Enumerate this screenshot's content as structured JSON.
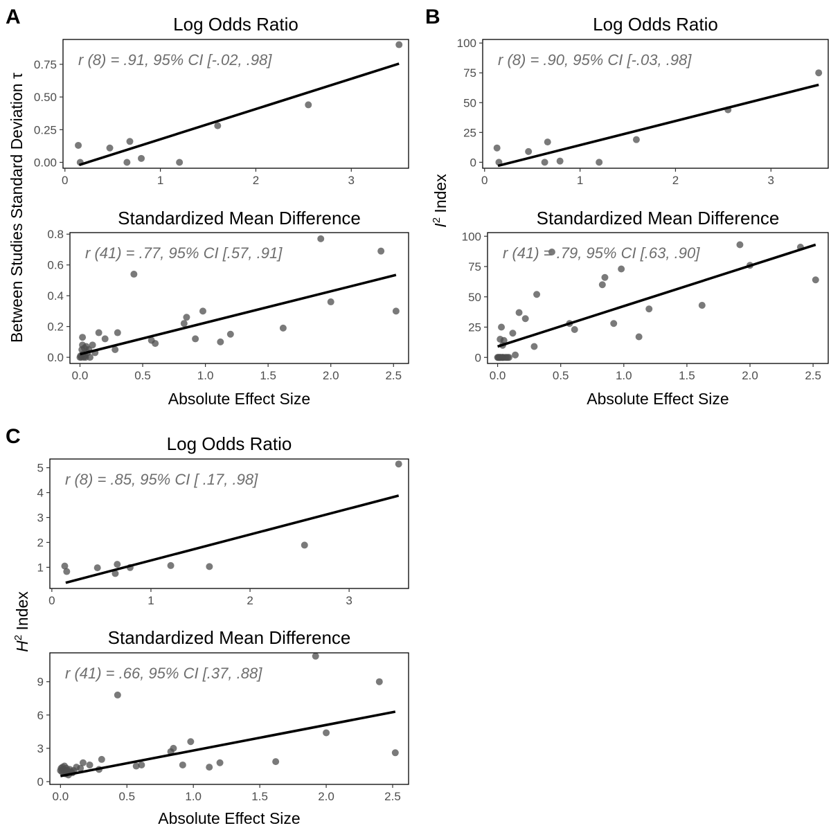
{
  "panel_letters": [
    "A",
    "B",
    "C"
  ],
  "chart_data": [
    {
      "id": "A-top",
      "panel": "A",
      "type": "scatter",
      "title": "Log Odds Ratio",
      "xlabel": "",
      "xlim": [
        -0.02,
        3.6
      ],
      "ylim": [
        -0.045,
        0.94
      ],
      "xticks": [
        0,
        1,
        2,
        3
      ],
      "yticks": [
        0,
        0.25,
        0.5,
        0.75
      ],
      "xticklabels": [
        "0",
        "1",
        "2",
        "3"
      ],
      "yticklabels": [
        "0.00",
        "0.25",
        "0.50",
        "0.75"
      ],
      "annotation": "r (8) = .91, 95% CI [-.02, .98]",
      "points": [
        [
          0.14,
          0.13
        ],
        [
          0.16,
          0.0
        ],
        [
          0.47,
          0.11
        ],
        [
          0.65,
          0.0
        ],
        [
          0.68,
          0.16
        ],
        [
          0.8,
          0.03
        ],
        [
          1.2,
          0.0
        ],
        [
          1.6,
          0.28
        ],
        [
          2.55,
          0.44
        ],
        [
          3.5,
          0.9
        ]
      ],
      "fit": [
        [
          0.15,
          -0.02
        ],
        [
          3.5,
          0.755
        ]
      ]
    },
    {
      "id": "A-bottom",
      "panel": "A",
      "type": "scatter",
      "title": "Standardized Mean Difference",
      "xlabel": "Absolute Effect Size",
      "xlim": [
        -0.08,
        2.62
      ],
      "ylim": [
        -0.04,
        0.81
      ],
      "xticks": [
        0,
        0.5,
        1,
        1.5,
        2,
        2.5
      ],
      "yticks": [
        0,
        0.2,
        0.4,
        0.6,
        0.8
      ],
      "xticklabels": [
        "0.0",
        "0.5",
        "1.0",
        "1.5",
        "2.0",
        "2.5"
      ],
      "yticklabels": [
        "0.0",
        "0.2",
        "0.4",
        "0.6",
        "0.8"
      ],
      "annotation": "r (41) = .77, 95% CI [.57, .91]",
      "points": [
        [
          0.0,
          0.0
        ],
        [
          0.005,
          0.01
        ],
        [
          0.01,
          0.0
        ],
        [
          0.015,
          0.05
        ],
        [
          0.02,
          0.08
        ],
        [
          0.02,
          0.13
        ],
        [
          0.025,
          0.02
        ],
        [
          0.03,
          0.0
        ],
        [
          0.035,
          0.06
        ],
        [
          0.04,
          0.01
        ],
        [
          0.045,
          0.0
        ],
        [
          0.05,
          0.07
        ],
        [
          0.06,
          0.03
        ],
        [
          0.07,
          0.05
        ],
        [
          0.08,
          0.0
        ],
        [
          0.1,
          0.08
        ],
        [
          0.12,
          0.03
        ],
        [
          0.15,
          0.16
        ],
        [
          0.2,
          0.12
        ],
        [
          0.28,
          0.05
        ],
        [
          0.3,
          0.16
        ],
        [
          0.43,
          0.54
        ],
        [
          0.57,
          0.11
        ],
        [
          0.6,
          0.09
        ],
        [
          0.83,
          0.22
        ],
        [
          0.85,
          0.26
        ],
        [
          0.92,
          0.12
        ],
        [
          0.98,
          0.3
        ],
        [
          1.12,
          0.1
        ],
        [
          1.2,
          0.15
        ],
        [
          1.62,
          0.19
        ],
        [
          1.92,
          0.77
        ],
        [
          2.0,
          0.36
        ],
        [
          2.4,
          0.69
        ],
        [
          2.52,
          0.3
        ]
      ],
      "fit": [
        [
          0.0,
          0.02
        ],
        [
          2.52,
          0.535
        ]
      ]
    },
    {
      "id": "B-top",
      "panel": "B",
      "type": "scatter",
      "title": "Log Odds Ratio",
      "xlabel": "",
      "xlim": [
        -0.02,
        3.6
      ],
      "ylim": [
        -5,
        103
      ],
      "xticks": [
        0,
        1,
        2,
        3
      ],
      "yticks": [
        0,
        25,
        50,
        75,
        100
      ],
      "xticklabels": [
        "0",
        "1",
        "2",
        "3"
      ],
      "yticklabels": [
        "0",
        "25",
        "50",
        "75",
        "100"
      ],
      "annotation": "r (8) = .90, 95% CI [-.03, .98]",
      "points": [
        [
          0.13,
          12
        ],
        [
          0.15,
          0
        ],
        [
          0.46,
          9
        ],
        [
          0.63,
          0
        ],
        [
          0.66,
          17
        ],
        [
          0.79,
          1
        ],
        [
          1.2,
          0
        ],
        [
          1.59,
          19
        ],
        [
          2.55,
          44
        ],
        [
          3.5,
          75
        ]
      ],
      "fit": [
        [
          0.14,
          -3
        ],
        [
          3.5,
          65
        ]
      ]
    },
    {
      "id": "B-bottom",
      "panel": "B",
      "type": "scatter",
      "title": "Standardized Mean Difference",
      "xlabel": "Absolute Effect Size",
      "xlim": [
        -0.08,
        2.62
      ],
      "ylim": [
        -5,
        103
      ],
      "xticks": [
        0,
        0.5,
        1,
        1.5,
        2,
        2.5
      ],
      "yticks": [
        0,
        25,
        50,
        75,
        100
      ],
      "xticklabels": [
        "0.0",
        "0.5",
        "1.0",
        "1.5",
        "2.0",
        "2.5"
      ],
      "yticklabels": [
        "0",
        "25",
        "50",
        "75",
        "100"
      ],
      "annotation": "r (41) = .79, 95% CI [.63, .90]",
      "points": [
        [
          0.0,
          0
        ],
        [
          0.005,
          0
        ],
        [
          0.01,
          0
        ],
        [
          0.015,
          0
        ],
        [
          0.02,
          0
        ],
        [
          0.02,
          15
        ],
        [
          0.025,
          0
        ],
        [
          0.03,
          25
        ],
        [
          0.035,
          0
        ],
        [
          0.04,
          0
        ],
        [
          0.045,
          0
        ],
        [
          0.05,
          14
        ],
        [
          0.06,
          0
        ],
        [
          0.07,
          0
        ],
        [
          0.08,
          0
        ],
        [
          0.09,
          0
        ],
        [
          0.04,
          10
        ],
        [
          0.12,
          20
        ],
        [
          0.14,
          2
        ],
        [
          0.17,
          37
        ],
        [
          0.22,
          32
        ],
        [
          0.29,
          9
        ],
        [
          0.31,
          52
        ],
        [
          0.43,
          87
        ],
        [
          0.57,
          28
        ],
        [
          0.61,
          23
        ],
        [
          0.83,
          60
        ],
        [
          0.85,
          66
        ],
        [
          0.92,
          28
        ],
        [
          0.98,
          73
        ],
        [
          1.12,
          17
        ],
        [
          1.2,
          40
        ],
        [
          1.62,
          43
        ],
        [
          1.92,
          93
        ],
        [
          2.0,
          76
        ],
        [
          2.4,
          91
        ],
        [
          2.52,
          64
        ]
      ],
      "fit": [
        [
          0.0,
          9
        ],
        [
          2.52,
          93
        ]
      ]
    },
    {
      "id": "C-top",
      "panel": "C",
      "type": "scatter",
      "title": "Log Odds Ratio",
      "xlabel": "",
      "xlim": [
        -0.02,
        3.6
      ],
      "ylim": [
        0.15,
        5.35
      ],
      "xticks": [
        0,
        1,
        2,
        3
      ],
      "yticks": [
        1,
        2,
        3,
        4,
        5
      ],
      "xticklabels": [
        "0",
        "1",
        "2",
        "3"
      ],
      "yticklabels": [
        "1",
        "2",
        "3",
        "4",
        "5"
      ],
      "annotation": "r (8) = .85, 95% CI [ .17, .98]",
      "points": [
        [
          0.13,
          1.05
        ],
        [
          0.15,
          0.83
        ],
        [
          0.46,
          0.98
        ],
        [
          0.64,
          0.75
        ],
        [
          0.66,
          1.12
        ],
        [
          0.79,
          0.99
        ],
        [
          1.2,
          1.07
        ],
        [
          1.59,
          1.03
        ],
        [
          2.55,
          1.89
        ],
        [
          3.5,
          5.15
        ]
      ],
      "fit": [
        [
          0.14,
          0.38
        ],
        [
          3.5,
          3.88
        ]
      ]
    },
    {
      "id": "C-bottom",
      "panel": "C",
      "type": "scatter",
      "title": "Standardized Mean Difference",
      "xlabel": "Absolute Effect Size",
      "xlim": [
        -0.08,
        2.62
      ],
      "ylim": [
        -0.25,
        11.6
      ],
      "xticks": [
        0,
        0.5,
        1,
        1.5,
        2,
        2.5
      ],
      "yticks": [
        0,
        3,
        6,
        9
      ],
      "xticklabels": [
        "0.0",
        "0.5",
        "1.0",
        "1.5",
        "2.0",
        "2.5"
      ],
      "yticklabels": [
        "0",
        "3",
        "6",
        "9"
      ],
      "annotation": "r (41) = .66, 95% CI [.37, .88]",
      "points": [
        [
          0.0,
          1.0
        ],
        [
          0.005,
          1.2
        ],
        [
          0.01,
          0.9
        ],
        [
          0.015,
          1.3
        ],
        [
          0.02,
          1.1
        ],
        [
          0.025,
          0.8
        ],
        [
          0.03,
          1.4
        ],
        [
          0.035,
          1.0
        ],
        [
          0.04,
          0.7
        ],
        [
          0.045,
          1.2
        ],
        [
          0.05,
          1.0
        ],
        [
          0.06,
          0.6
        ],
        [
          0.07,
          1.1
        ],
        [
          0.08,
          0.9
        ],
        [
          0.09,
          0.8
        ],
        [
          0.1,
          1.0
        ],
        [
          0.12,
          1.3
        ],
        [
          0.15,
          1.2
        ],
        [
          0.17,
          1.7
        ],
        [
          0.22,
          1.5
        ],
        [
          0.29,
          1.1
        ],
        [
          0.31,
          2.0
        ],
        [
          0.43,
          7.8
        ],
        [
          0.57,
          1.4
        ],
        [
          0.61,
          1.5
        ],
        [
          0.83,
          2.7
        ],
        [
          0.85,
          3.0
        ],
        [
          0.92,
          1.5
        ],
        [
          0.98,
          3.6
        ],
        [
          1.12,
          1.3
        ],
        [
          1.2,
          1.7
        ],
        [
          1.62,
          1.8
        ],
        [
          1.92,
          11.3
        ],
        [
          2.0,
          4.4
        ],
        [
          2.4,
          9.0
        ],
        [
          2.52,
          2.6
        ]
      ],
      "fit": [
        [
          0.0,
          0.5
        ],
        [
          2.52,
          6.3
        ]
      ]
    }
  ],
  "shared_ylabels": [
    {
      "panel": "A",
      "text": "Between Studies Standard Deviation τ"
    },
    {
      "panel": "B",
      "sym": "I",
      "sup": "2",
      "text": " Index"
    },
    {
      "panel": "C",
      "sym": "H",
      "sup": "2",
      "text": " Index"
    }
  ]
}
